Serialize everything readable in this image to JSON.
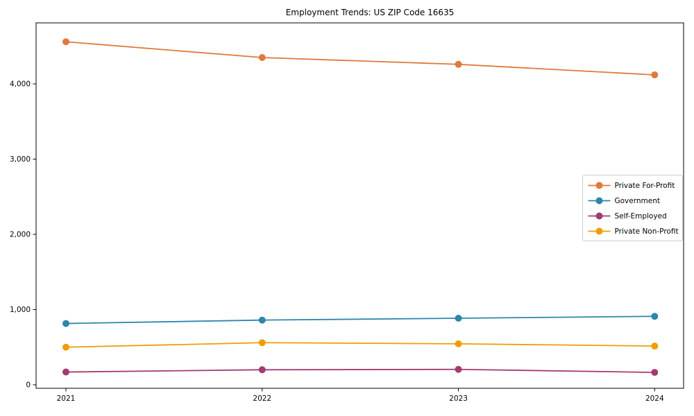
{
  "chart_data": {
    "type": "line",
    "title": "Employment Trends: US ZIP Code 16635",
    "xlabel": "",
    "ylabel": "",
    "x": [
      2021,
      2022,
      2023,
      2024
    ],
    "x_tick_labels": [
      "2021",
      "2022",
      "2023",
      "2024"
    ],
    "series": [
      {
        "name": "Private For-Profit",
        "color": "#e0793e",
        "values": [
          4560,
          4350,
          4260,
          4120
        ]
      },
      {
        "name": "Government",
        "color": "#2e86ab",
        "values": [
          815,
          860,
          885,
          910
        ]
      },
      {
        "name": "Self-Employed",
        "color": "#a23b72",
        "values": [
          170,
          200,
          205,
          165
        ]
      },
      {
        "name": "Private Non-Profit",
        "color": "#f29c05",
        "values": [
          500,
          560,
          545,
          515
        ]
      }
    ],
    "yticks": [
      0,
      1000,
      2000,
      3000,
      4000
    ],
    "ytick_labels": [
      "0",
      "1,000",
      "2,000",
      "3,000",
      "4,000"
    ],
    "ylim": [
      -55,
      4800
    ],
    "grid": false,
    "legend_position": "center-right",
    "plot_background": "#ffffff",
    "frame_color": "#000000",
    "legend_border_color": "#cccccc"
  }
}
